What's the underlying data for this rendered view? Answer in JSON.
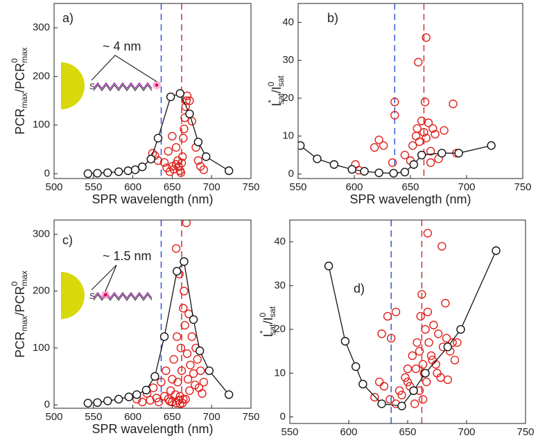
{
  "chart_data": [
    {
      "type": "scatter",
      "panel": "a)",
      "xlabel": "SPR wavelength (nm)",
      "ylabel": [
        {
          "t": "PCR"
        },
        {
          "t": "max",
          "s": "sub"
        },
        {
          "t": "/PCR"
        },
        {
          "t": "0",
          "s": "sup"
        },
        {
          "t": "max",
          "s": "sub"
        }
      ],
      "annotation": "~ 4 nm",
      "linker": "S",
      "xlim": [
        500,
        750
      ],
      "xticks": [
        500,
        550,
        600,
        650,
        700,
        750
      ],
      "ylim": [
        -10,
        350
      ],
      "yticks": [
        0,
        100,
        200,
        300
      ],
      "vlines": [
        {
          "x": 636,
          "color": "#3355dd"
        },
        {
          "x": 662,
          "color": "#cc3333"
        }
      ],
      "series": [
        {
          "color": "#e0201b",
          "line": false,
          "x": [
            625,
            628,
            632,
            640,
            645,
            647,
            650,
            652,
            655,
            657,
            658,
            660,
            661,
            662,
            663,
            664,
            665,
            666,
            667,
            668,
            669,
            672,
            675,
            680,
            683,
            686,
            690,
            650,
            655,
            643
          ],
          "y": [
            42,
            37,
            27,
            23,
            46,
            4,
            15,
            9,
            19,
            27,
            14,
            6,
            2,
            22,
            35,
            73,
            92,
            115,
            138,
            150,
            160,
            150,
            108,
            54,
            27,
            15,
            8,
            77,
            54,
            12
          ]
        },
        {
          "color": "#111111",
          "line": true,
          "x": [
            543,
            555,
            568,
            582,
            594,
            603,
            612,
            623,
            632,
            648,
            660,
            672,
            683,
            693,
            722
          ],
          "y": [
            0,
            1,
            2,
            4,
            6,
            8,
            14,
            30,
            73,
            158,
            165,
            123,
            65,
            35,
            6
          ]
        }
      ]
    },
    {
      "type": "scatter",
      "panel": "b)",
      "xlabel": "SPR wavelength (nm)",
      "ylabel": [
        {
          "t": "I"
        },
        {
          "t": "*",
          "s": "sup"
        },
        {
          "t": "sat",
          "s": "sub"
        },
        {
          "t": "/I"
        },
        {
          "t": "0",
          "s": "sup"
        },
        {
          "t": "sat",
          "s": "sub"
        }
      ],
      "xlim": [
        550,
        750
      ],
      "xticks": [
        550,
        600,
        650,
        700,
        750
      ],
      "ylim": [
        -1.2,
        45
      ],
      "yticks": [
        0,
        10,
        20,
        30,
        40
      ],
      "vlines": [
        {
          "x": 636,
          "color": "#3355dd"
        },
        {
          "x": 662,
          "color": "#cc3333"
        }
      ],
      "series": [
        {
          "color": "#e0201b",
          "line": false,
          "x": [
            636,
            636,
            657,
            664,
            663,
            688,
            622,
            618,
            626,
            601,
            604,
            634,
            652,
            655,
            656,
            658,
            660,
            662,
            664,
            666,
            668,
            670,
            672,
            675,
            680,
            650,
            645,
            691,
            668,
            660
          ],
          "y": [
            19,
            15.5,
            29.5,
            36,
            19,
            18.5,
            9,
            7,
            7.5,
            2.5,
            1,
            3,
            7.5,
            10,
            12,
            8.5,
            5,
            11,
            9.5,
            13.5,
            6,
            12,
            10.5,
            4,
            11.5,
            3.5,
            5,
            5.5,
            3,
            14
          ]
        },
        {
          "color": "#111111",
          "line": true,
          "x": [
            552,
            567,
            582,
            598,
            609,
            622,
            635,
            645,
            653,
            660,
            678,
            693,
            722
          ],
          "y": [
            7.5,
            4,
            2.5,
            1.2,
            0.7,
            0.3,
            0.2,
            0.5,
            2.5,
            5,
            5.5,
            5.5,
            7.5
          ]
        }
      ]
    },
    {
      "type": "scatter",
      "panel": "c)",
      "xlabel": "SPR wavelength (nm)",
      "ylabel": [
        {
          "t": "PCR"
        },
        {
          "t": "max",
          "s": "sub"
        },
        {
          "t": "/PCR"
        },
        {
          "t": "0",
          "s": "sup"
        },
        {
          "t": "max",
          "s": "sub"
        }
      ],
      "annotation": "~ 1.5 nm",
      "linker": "S",
      "xlim": [
        500,
        750
      ],
      "xticks": [
        500,
        550,
        600,
        650,
        700,
        750
      ],
      "ylim": [
        -6,
        325
      ],
      "yticks": [
        0,
        100,
        200,
        300
      ],
      "vlines": [
        {
          "x": 636,
          "color": "#3355dd"
        },
        {
          "x": 662,
          "color": "#cc3333"
        }
      ],
      "series": [
        {
          "color": "#e0201b",
          "line": false,
          "x": [
            605,
            612,
            618,
            622,
            626,
            630,
            633,
            636,
            640,
            642,
            645,
            648,
            650,
            652,
            654,
            655,
            656,
            657,
            658,
            659,
            660,
            661,
            662,
            663,
            664,
            665,
            666,
            667,
            668,
            669,
            670,
            671,
            672,
            673,
            675,
            677,
            679,
            680,
            682,
            684,
            686,
            688,
            690,
            655,
            650,
            647,
            660,
            664
          ],
          "y": [
            10,
            5,
            20,
            8,
            30,
            12,
            5,
            40,
            15,
            60,
            10,
            25,
            5,
            80,
            18,
            275,
            120,
            40,
            8,
            230,
            15,
            100,
            60,
            3,
            170,
            200,
            140,
            10,
            320,
            90,
            45,
            160,
            25,
            70,
            120,
            55,
            35,
            100,
            80,
            30,
            60,
            20,
            40,
            3,
            45,
            6,
            2,
            10
          ]
        },
        {
          "color": "#111111",
          "line": true,
          "x": [
            543,
            555,
            568,
            582,
            595,
            605,
            617,
            628,
            640,
            656,
            665,
            677,
            685,
            697,
            722
          ],
          "y": [
            3,
            4,
            7,
            10,
            14,
            18,
            26,
            50,
            120,
            235,
            252,
            150,
            95,
            60,
            18
          ]
        }
      ]
    },
    {
      "type": "scatter",
      "panel": "d)",
      "xlabel": "SPR wavelength (nm)",
      "ylabel": [
        {
          "t": "I"
        },
        {
          "t": "*",
          "s": "sup"
        },
        {
          "t": "sat",
          "s": "sub"
        },
        {
          "t": "/I"
        },
        {
          "t": "0",
          "s": "sup"
        },
        {
          "t": "sat",
          "s": "sub"
        }
      ],
      "xlim": [
        550,
        750
      ],
      "xticks": [
        550,
        600,
        650,
        700,
        750
      ],
      "ylim": [
        -1.5,
        45
      ],
      "yticks": [
        0,
        10,
        20,
        30,
        40
      ],
      "vlines": [
        {
          "x": 636,
          "color": "#3355dd"
        },
        {
          "x": 662,
          "color": "#cc3333"
        }
      ],
      "series": [
        {
          "color": "#e0201b",
          "line": false,
          "x": [
            622,
            626,
            630,
            633,
            636,
            640,
            643,
            645,
            648,
            650,
            652,
            654,
            655,
            656,
            658,
            660,
            661,
            662,
            663,
            664,
            665,
            666,
            667,
            668,
            670,
            672,
            674,
            676,
            678,
            680,
            682,
            684,
            686,
            688,
            690,
            692,
            640,
            635,
            628,
            650,
            657,
            660,
            663,
            667,
            671,
            675,
            679,
            683
          ],
          "y": [
            4.5,
            8,
            7,
            23,
            18,
            24,
            6,
            5,
            9,
            11,
            7,
            14,
            6,
            3,
            17,
            15,
            23,
            28,
            12,
            10,
            20,
            8,
            42,
            17,
            14,
            21,
            12,
            19,
            9,
            16,
            26,
            8.5,
            15,
            17,
            13,
            17,
            3,
            4,
            19,
            8,
            11,
            6,
            4,
            24,
            13,
            10,
            39,
            18
          ]
        },
        {
          "color": "#111111",
          "line": true,
          "x": [
            583,
            597,
            606,
            612,
            628,
            645,
            655,
            665,
            684,
            695,
            725
          ],
          "y": [
            34.5,
            17.3,
            11.5,
            7.5,
            3,
            2.5,
            6,
            10,
            16,
            20,
            38
          ]
        }
      ]
    }
  ]
}
